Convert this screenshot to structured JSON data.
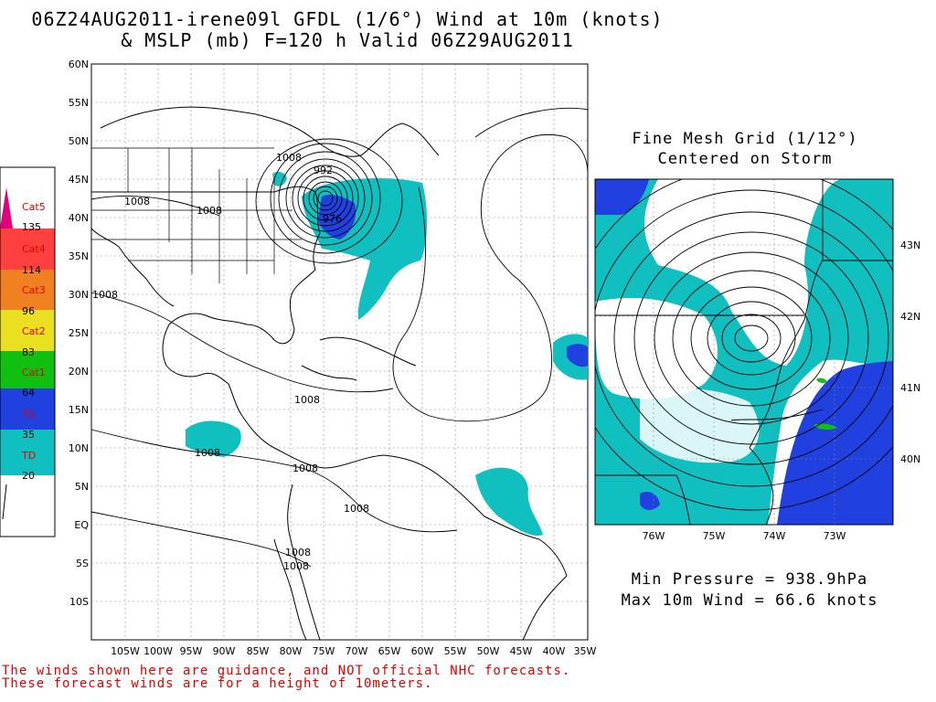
{
  "title": {
    "line1": "06Z24AUG2011-irene09l GFDL (1/6°) Wind at 10m (knots)",
    "line2": "& MSLP (mb) F=120 h Valid 06Z29AUG2011"
  },
  "main_map": {
    "lat_labels": [
      "60N",
      "55N",
      "50N",
      "45N",
      "40N",
      "35N",
      "30N",
      "25N",
      "20N",
      "15N",
      "10N",
      "5N",
      "EQ",
      "5S",
      "10S"
    ],
    "lon_labels": [
      "105W",
      "100W",
      "95W",
      "90W",
      "85W",
      "80W",
      "75W",
      "70W",
      "65W",
      "60W",
      "55W",
      "50W",
      "45W",
      "40W",
      "35W"
    ],
    "contour_labels": [
      "1008",
      "1008",
      "1008",
      "1008",
      "1008",
      "1008",
      "1008",
      "1008",
      "1008",
      "1008",
      "992",
      "976"
    ]
  },
  "legend": {
    "categories": [
      {
        "name": "Cat5",
        "value": "135",
        "color": "#e0007a"
      },
      {
        "name": "Cat4",
        "value": "114",
        "color": "#ff4040"
      },
      {
        "name": "Cat3",
        "value": "96",
        "color": "#f08020"
      },
      {
        "name": "Cat2",
        "value": "83",
        "color": "#e8e020"
      },
      {
        "name": "Cat1",
        "value": "64",
        "color": "#10c010"
      },
      {
        "name": "TS",
        "value": "35",
        "color": "#2040e0"
      },
      {
        "name": "TD",
        "value": "20",
        "color": "#10c0c0"
      }
    ]
  },
  "inset": {
    "title_line1": "Fine Mesh Grid (1/12°)",
    "title_line2": "Centered on Storm",
    "lat_labels": [
      "43N",
      "42N",
      "41N",
      "40N"
    ],
    "lon_labels": [
      "76W",
      "75W",
      "74W",
      "73W"
    ]
  },
  "stats": {
    "min_pressure": "Min Pressure = 938.9hPa",
    "max_wind": "Max 10m Wind = 66.6 knots"
  },
  "disclaimer": {
    "line1": "The winds shown here are guidance, and NOT official NHC forecasts.",
    "line2": "These forecast winds are for a height of 10meters."
  },
  "colors": {
    "ts": "#2040e0",
    "td": "#10c0c0",
    "disclaimer": "#e00000"
  }
}
